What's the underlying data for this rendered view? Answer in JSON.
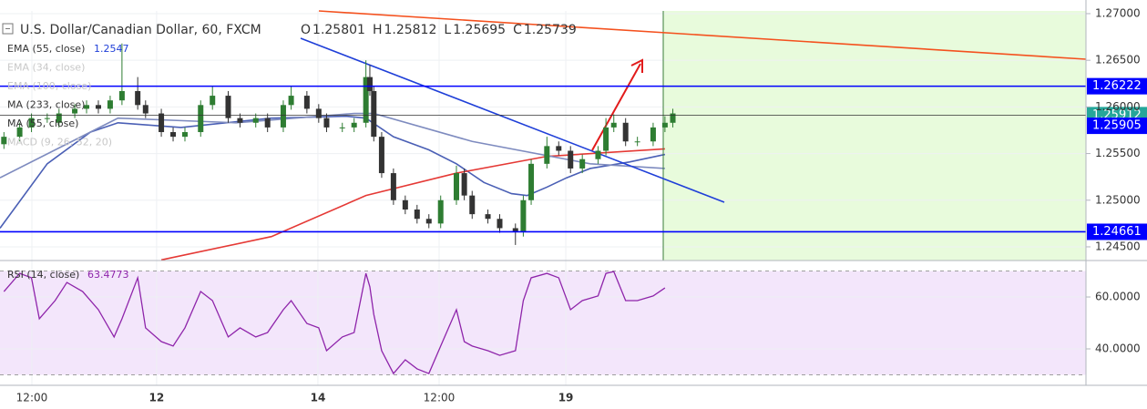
{
  "chart_data": [
    {
      "type": "candlestick",
      "title": "U.S. Dollar/Canadian Dollar, 60, FXCM",
      "ohlc": [
        {
          "label": "O",
          "value": 1.25801
        },
        {
          "label": "H",
          "value": 1.25812
        },
        {
          "label": "L",
          "value": 1.25695
        },
        {
          "label": "C",
          "value": 1.25739
        }
      ],
      "up_color": "#2e7d32",
      "down_color": "#333333",
      "x": [
        1,
        5,
        8,
        12,
        15,
        19,
        22,
        25,
        28,
        31,
        35,
        37,
        41,
        44,
        47,
        51,
        54,
        58,
        61,
        65,
        68,
        72,
        74,
        78,
        81,
        83,
        87,
        90,
        93,
        94,
        95,
        97,
        100,
        103,
        106,
        109,
        112,
        116,
        118,
        120,
        124,
        127,
        131,
        133,
        135,
        139,
        142,
        145,
        148,
        152,
        154,
        156,
        159,
        162,
        166,
        169,
        171
      ],
      "open": [
        1.256,
        1.2568,
        1.2578,
        1.2588,
        1.2583,
        1.2593,
        1.2598,
        1.2602,
        1.2598,
        1.2607,
        1.2617,
        1.2602,
        1.2593,
        1.2573,
        1.2568,
        1.2573,
        1.2602,
        1.2612,
        1.2588,
        1.2583,
        1.2588,
        1.2578,
        1.2602,
        1.2612,
        1.2598,
        1.2588,
        1.2578,
        1.2578,
        1.2583,
        1.2632,
        1.2617,
        1.2568,
        1.2529,
        1.25,
        1.249,
        1.248,
        1.2475,
        1.25,
        1.2529,
        1.2505,
        1.2485,
        1.248,
        1.247,
        1.2466,
        1.25,
        1.2539,
        1.2558,
        1.2553,
        1.2534,
        1.2544,
        1.2553,
        1.2578,
        1.2583,
        1.2563,
        1.2563,
        1.2578,
        1.2583
      ],
      "high": [
        1.2573,
        1.2583,
        1.2593,
        1.2593,
        1.2598,
        1.2603,
        1.2607,
        1.2607,
        1.2612,
        1.2668,
        1.2632,
        1.2607,
        1.2598,
        1.2578,
        1.2578,
        1.2607,
        1.2622,
        1.2617,
        1.2593,
        1.2593,
        1.2593,
        1.2607,
        1.2622,
        1.2617,
        1.2603,
        1.2593,
        1.2583,
        1.2588,
        1.265,
        1.2645,
        1.2622,
        1.2573,
        1.2534,
        1.2505,
        1.2495,
        1.2485,
        1.2505,
        1.2537,
        1.2534,
        1.251,
        1.249,
        1.2485,
        1.2475,
        1.2505,
        1.2544,
        1.2568,
        1.2563,
        1.2558,
        1.2549,
        1.2558,
        1.2588,
        1.2592,
        1.2588,
        1.2568,
        1.2583,
        1.259,
        1.2598
      ],
      "low": [
        1.2555,
        1.2563,
        1.2573,
        1.2583,
        1.2578,
        1.2588,
        1.2593,
        1.2593,
        1.2593,
        1.2602,
        1.2597,
        1.2588,
        1.2568,
        1.2563,
        1.2563,
        1.2568,
        1.2597,
        1.2583,
        1.2578,
        1.2578,
        1.2573,
        1.2573,
        1.2597,
        1.2593,
        1.2583,
        1.2573,
        1.2573,
        1.2573,
        1.2578,
        1.2612,
        1.2563,
        1.2524,
        1.2495,
        1.2485,
        1.2475,
        1.247,
        1.247,
        1.2495,
        1.25,
        1.248,
        1.2475,
        1.2465,
        1.2452,
        1.2461,
        1.2495,
        1.2534,
        1.2548,
        1.2529,
        1.2529,
        1.2539,
        1.2548,
        1.2573,
        1.2558,
        1.2558,
        1.2558,
        1.2573,
        1.2578
      ],
      "close": [
        1.2568,
        1.2578,
        1.2588,
        1.2588,
        1.2593,
        1.2598,
        1.2602,
        1.2598,
        1.2607,
        1.2617,
        1.2602,
        1.2593,
        1.2573,
        1.2568,
        1.2573,
        1.2602,
        1.2612,
        1.2588,
        1.2583,
        1.2588,
        1.2578,
        1.2602,
        1.2612,
        1.2598,
        1.2588,
        1.2578,
        1.2578,
        1.2583,
        1.2632,
        1.2617,
        1.2568,
        1.2529,
        1.25,
        1.249,
        1.248,
        1.2475,
        1.25,
        1.2529,
        1.2505,
        1.2485,
        1.248,
        1.247,
        1.2466,
        1.25,
        1.2539,
        1.2558,
        1.2553,
        1.2534,
        1.2544,
        1.2553,
        1.2578,
        1.2583,
        1.2563,
        1.2563,
        1.2578,
        1.2583,
        1.2593
      ],
      "indicators": [
        {
          "name": "EMA (55, close)",
          "value": 1.2547,
          "visible": true,
          "color": "#4a5fb5",
          "x": [
            0,
            12,
            23,
            30,
            46,
            69,
            88,
            93,
            100,
            109,
            116,
            123,
            130,
            134,
            139,
            144,
            150,
            160,
            169
          ],
          "values": [
            1.247,
            1.2539,
            1.2573,
            1.2583,
            1.2578,
            1.2588,
            1.259,
            1.2588,
            1.2568,
            1.2554,
            1.2539,
            1.2519,
            1.2507,
            1.2505,
            1.2514,
            1.2524,
            1.2534,
            1.2541,
            1.2549
          ]
        },
        {
          "name": "EMA (34, close)",
          "visible": false
        },
        {
          "name": "EMA (100, close)",
          "visible": false
        },
        {
          "name": "MA (233, close)",
          "visible": true,
          "color": "#e53935",
          "x": [
            41,
            69,
            93,
            116,
            139,
            169
          ],
          "values": [
            1.2436,
            1.2461,
            1.2505,
            1.2529,
            1.2547,
            1.2555
          ]
        },
        {
          "name": "MA (55, close)",
          "visible": true,
          "color": "#7e8bbf",
          "x": [
            0,
            30,
            60,
            90,
            95,
            120,
            150,
            169
          ],
          "values": [
            1.2524,
            1.2588,
            1.2583,
            1.2593,
            1.2593,
            1.2563,
            1.2539,
            1.2534
          ]
        },
        {
          "name": "MACD (9, 26, 52, 20)",
          "visible": false
        }
      ],
      "levels": [
        {
          "value": 1.26222,
          "color": "#0000ff"
        },
        {
          "value": 1.24661,
          "color": "#0000ff"
        },
        {
          "value": 1.25912,
          "color": "#26a69a"
        }
      ],
      "markers": [
        {
          "value": 1.25905,
          "color": "#0000ff"
        }
      ],
      "xlim": [
        0,
        276
      ],
      "xticks": [
        {
          "value": 8.1,
          "label": "12:00"
        },
        {
          "value": 39.8,
          "label": "12"
        },
        {
          "value": 80.8,
          "label": "14"
        },
        {
          "value": 111.6,
          "label": "12:00"
        },
        {
          "value": 143.8,
          "label": "19"
        }
      ],
      "ylim": [
        1.24363,
        1.27029
      ],
      "yticks": [
        {
          "value": 1.245,
          "label": "1.24500"
        },
        {
          "value": 1.25,
          "label": "1.25000"
        },
        {
          "value": 1.255,
          "label": "1.25500"
        },
        {
          "value": 1.26,
          "label": "1.26000"
        },
        {
          "value": 1.265,
          "label": "1.26500"
        },
        {
          "value": 1.27,
          "label": "1.27000"
        }
      ],
      "grid": true
    },
    {
      "type": "line",
      "title": "RSI (14, close)",
      "value": 63.4773,
      "color": "#8e24aa",
      "x": [
        1,
        5,
        8,
        10,
        14,
        17,
        21,
        25,
        29,
        31,
        35,
        37,
        41,
        44,
        47,
        51,
        54,
        58,
        61,
        65,
        68,
        72,
        74,
        78,
        81,
        83,
        87,
        90,
        93,
        94,
        95,
        97,
        100,
        103,
        106,
        109,
        112,
        116,
        118,
        120,
        124,
        127,
        131,
        133,
        135,
        139,
        142,
        145,
        148,
        152,
        154,
        156,
        159,
        162,
        166,
        169
      ],
      "values": [
        62.1,
        69.1,
        67.4,
        51.6,
        58.6,
        65.6,
        62.1,
        55.1,
        44.6,
        51.6,
        67.4,
        48.1,
        42.8,
        41.1,
        48.1,
        62.1,
        58.6,
        44.6,
        48.1,
        44.6,
        46.3,
        55.1,
        58.6,
        49.8,
        48.1,
        39.3,
        44.6,
        46.3,
        69.1,
        63.9,
        53.3,
        39.3,
        30.5,
        35.8,
        32.3,
        30.5,
        41.1,
        55.1,
        42.8,
        41.1,
        39.3,
        37.5,
        39.3,
        58.6,
        67.4,
        69.1,
        67.4,
        55.1,
        58.6,
        60.4,
        69.1,
        69.8,
        58.6,
        58.6,
        60.4,
        63.5
      ],
      "band": [
        30,
        70
      ],
      "ylim": [
        25.96,
        73.7
      ],
      "yticks": [
        {
          "value": 40,
          "label": "40.0000"
        },
        {
          "value": 60,
          "label": "60.0000"
        }
      ]
    }
  ]
}
